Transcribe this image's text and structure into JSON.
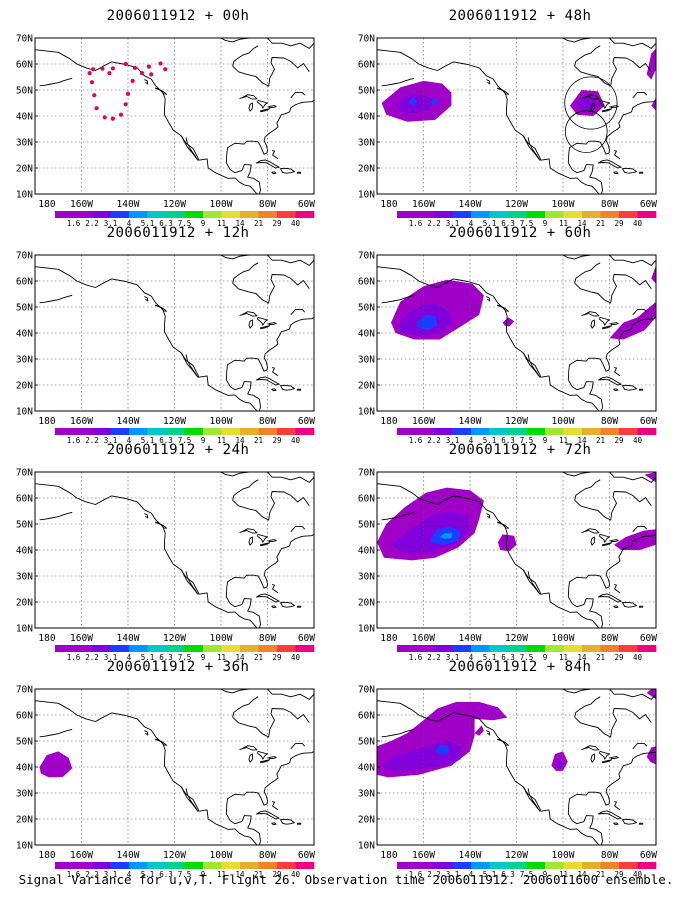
{
  "panels": [
    {
      "title": "2006011912 + 00h"
    },
    {
      "title": "2006011912 + 48h"
    },
    {
      "title": "2006011912 + 12h"
    },
    {
      "title": "2006011912 + 60h"
    },
    {
      "title": "2006011912 + 24h"
    },
    {
      "title": "2006011912 + 72h"
    },
    {
      "title": "2006011912 + 36h"
    },
    {
      "title": "2006011912 + 84h"
    }
  ],
  "axes": {
    "lat_labels": [
      "10N",
      "20N",
      "30N",
      "40N",
      "50N",
      "60N",
      "70N"
    ],
    "lon_labels": [
      "180",
      "160W",
      "140W",
      "120W",
      "100W",
      "80W",
      "60W"
    ]
  },
  "colorbar": {
    "labels": [
      "1.6",
      "2.2",
      "3.1",
      "4",
      "5.1",
      "6.3",
      "7.5",
      "9",
      "11",
      "14",
      "21",
      "29",
      "40"
    ],
    "colors": [
      "#a000c8",
      "#8200dc",
      "#1e3cff",
      "#0096ff",
      "#00c8c8",
      "#00d28c",
      "#00dc00",
      "#a0e632",
      "#e6dc32",
      "#e6af2d",
      "#f08228",
      "#fa3c3c",
      "#f00082"
    ]
  },
  "caption": "Signal Variance for u,v,T. Flight 26. Observation time 2006011912. 2006011600 ensemble."
}
